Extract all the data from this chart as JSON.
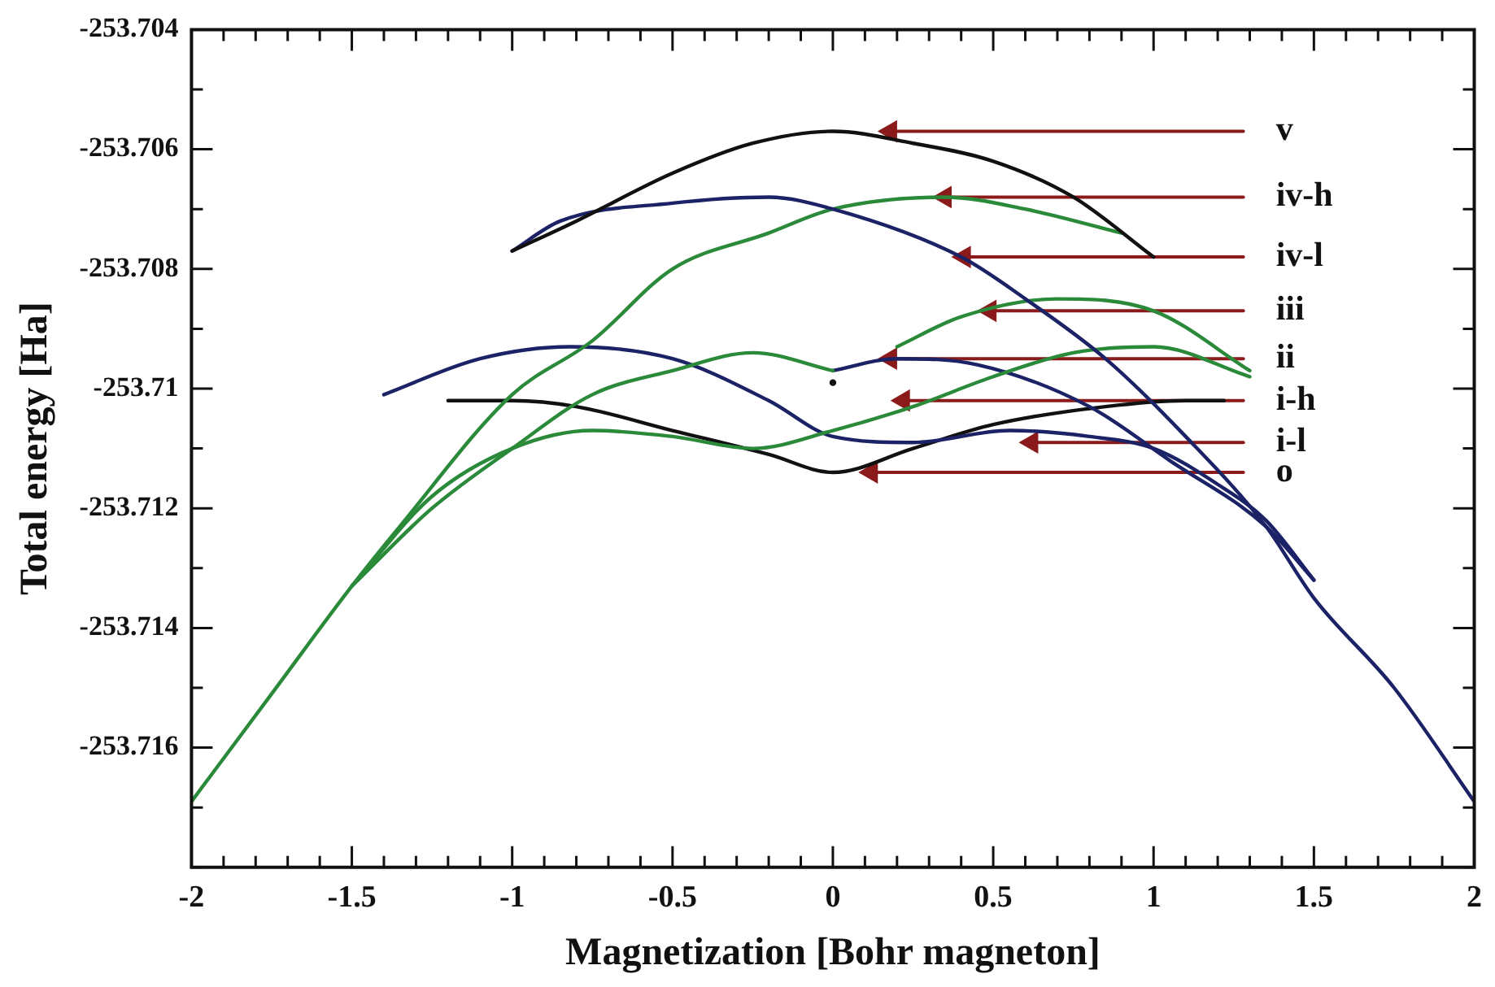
{
  "chart_data": {
    "type": "line",
    "xlabel": "Magnetization [Bohr magneton]",
    "ylabel": "Total energy [Ha]",
    "xlim": [
      -2,
      2
    ],
    "ylim": [
      -253.718,
      -253.704
    ],
    "xticks": [
      -2,
      {
        "value": -1.9,
        "label": null
      },
      {
        "value": -1.8,
        "label": null
      },
      {
        "value": -1.7,
        "label": null
      },
      {
        "value": -1.6,
        "label": null
      },
      -1.5,
      {
        "value": -1.4,
        "label": null
      },
      {
        "value": -1.3,
        "label": null
      },
      {
        "value": -1.2,
        "label": null
      },
      {
        "value": -1.1,
        "label": null
      },
      -1,
      {
        "value": -0.9,
        "label": null
      },
      {
        "value": -0.8,
        "label": null
      },
      {
        "value": -0.7,
        "label": null
      },
      {
        "value": -0.6,
        "label": null
      },
      -0.5,
      {
        "value": -0.4,
        "label": null
      },
      {
        "value": -0.3,
        "label": null
      },
      {
        "value": -0.2,
        "label": null
      },
      {
        "value": -0.1,
        "label": null
      },
      0,
      {
        "value": 0.1,
        "label": null
      },
      {
        "value": 0.2,
        "label": null
      },
      {
        "value": 0.3,
        "label": null
      },
      {
        "value": 0.4,
        "label": null
      },
      0.5,
      {
        "value": 0.6,
        "label": null
      },
      {
        "value": 0.7,
        "label": null
      },
      {
        "value": 0.8,
        "label": null
      },
      {
        "value": 0.9,
        "label": null
      },
      1,
      {
        "value": 1.1,
        "label": null
      },
      {
        "value": 1.2,
        "label": null
      },
      {
        "value": 1.3,
        "label": null
      },
      {
        "value": 1.4,
        "label": null
      },
      1.5,
      {
        "value": 1.6,
        "label": null
      },
      {
        "value": 1.7,
        "label": null
      },
      {
        "value": 1.8,
        "label": null
      },
      {
        "value": 1.9,
        "label": null
      },
      2
    ],
    "yticks": [
      {
        "value": -253.718,
        "label": null
      },
      {
        "value": -253.717,
        "label": null
      },
      -253.716,
      {
        "value": -253.715,
        "label": null
      },
      -253.714,
      {
        "value": -253.713,
        "label": null
      },
      -253.712,
      {
        "value": -253.711,
        "label": null
      },
      -253.71,
      {
        "value": -253.709,
        "label": null
      },
      -253.708,
      {
        "value": -253.707,
        "label": null
      },
      -253.706,
      {
        "value": -253.705,
        "label": null
      },
      -253.704
    ],
    "grid": false,
    "legend": false,
    "marker": "none",
    "line_style": "solid",
    "series": [
      {
        "color": "#111111",
        "x": [
          -1,
          -0.8,
          -0.5,
          -0.25,
          0,
          0.25,
          0.5,
          0.75,
          1
        ],
        "values": [
          -253.7077,
          -253.7072,
          -253.7064,
          -253.7059,
          -253.7057,
          -253.7059,
          -253.7062,
          -253.7068,
          -253.7078
        ]
      },
      {
        "color": "#1c2266",
        "x": [
          -1,
          -0.85,
          -0.5,
          -0.2,
          0,
          0.4,
          0.6,
          0.85,
          1.1,
          1.35,
          1.5,
          1.75,
          2
        ],
        "values": [
          -253.7077,
          -253.7072,
          -253.7069,
          -253.7068,
          -253.707,
          -253.7078,
          -253.7085,
          -253.7095,
          -253.7108,
          -253.7123,
          -253.7135,
          -253.715,
          -253.7169
        ]
      },
      {
        "color": "#2a8a3a",
        "x": [
          -2,
          -1.75,
          -1.5,
          -1.35,
          -1,
          -0.75,
          -0.5,
          -0.2,
          0,
          0.35,
          0.6,
          0.9
        ],
        "values": [
          -253.7169,
          -253.7151,
          -253.7133,
          -253.7123,
          -253.7101,
          -253.7092,
          -253.708,
          -253.7074,
          -253.707,
          -253.7068,
          -253.707,
          -253.7074
        ]
      },
      {
        "color": "#2a8a3a",
        "x": [
          0.2,
          0.4,
          0.7,
          1,
          1.3
        ],
        "values": [
          -253.7093,
          -253.7088,
          -253.7085,
          -253.7087,
          -253.7097
        ]
      },
      {
        "color": "#2a8a3a",
        "x": [
          -1.5,
          -1.25,
          -1,
          -0.75,
          -0.5,
          -0.25,
          0,
          0.25,
          0.5,
          0.75,
          1,
          1.3
        ],
        "values": [
          -253.7133,
          -253.7118,
          -253.711,
          -253.7107,
          -253.7108,
          -253.711,
          -253.7107,
          -253.7103,
          -253.7098,
          -253.7094,
          -253.7093,
          -253.7098
        ]
      },
      {
        "color": "#2a8a3a",
        "x": [
          -1.5,
          -1.25,
          -1,
          -0.75,
          -0.5,
          -0.25,
          0
        ],
        "values": [
          -253.7133,
          -253.712,
          -253.711,
          -253.7101,
          -253.7097,
          -253.7094,
          -253.7097
        ]
      },
      {
        "color": "#1c2266",
        "x": [
          0,
          0.2,
          0.45,
          0.8,
          1.05,
          1.35,
          1.5
        ],
        "values": [
          -253.7097,
          -253.7095,
          -253.7096,
          -253.7103,
          -253.7112,
          -253.7123,
          -253.7132
        ]
      },
      {
        "color": "#1c2266",
        "x": [
          -1.4,
          -1.1,
          -0.82,
          -0.5,
          -0.2,
          0,
          0.25,
          0.55,
          0.8,
          1,
          1.2,
          1.35,
          1.5
        ],
        "values": [
          -253.7101,
          -253.7095,
          -253.7093,
          -253.7095,
          -253.7102,
          -253.7108,
          -253.7109,
          -253.7107,
          -253.7108,
          -253.711,
          -253.7116,
          -253.7122,
          -253.7132
        ]
      },
      {
        "color": "#111111",
        "x": [
          -1.2,
          -1,
          -0.8,
          -0.5,
          -0.2,
          0,
          0.25,
          0.5,
          0.85,
          1.1,
          1.22
        ],
        "values": [
          -253.7102,
          -253.7102,
          -253.7103,
          -253.7107,
          -253.7111,
          -253.7114,
          -253.711,
          -253.7106,
          -253.7103,
          -253.7102,
          -253.7102
        ]
      },
      {
        "type": "scatter",
        "color": "#111111",
        "marker": "circle",
        "x": [
          0
        ],
        "values": [
          -253.7099
        ]
      },
      {
        "name": "v",
        "color": "#8b1a1a",
        "marker": "triangle",
        "x": [
          1.28,
          0.18
        ],
        "values": [
          -253.7057,
          -253.7057
        ]
      },
      {
        "name": "iv-h",
        "color": "#8b1a1a",
        "marker": "triangle",
        "x": [
          1.28,
          0.35
        ],
        "values": [
          -253.7068,
          -253.7068
        ]
      },
      {
        "name": "iv-l",
        "color": "#8b1a1a",
        "marker": "triangle",
        "x": [
          1.28,
          0.41
        ],
        "values": [
          -253.7078,
          -253.7078
        ]
      },
      {
        "name": "iii",
        "color": "#8b1a1a",
        "marker": "triangle",
        "x": [
          1.28,
          0.49
        ],
        "values": [
          -253.7087,
          -253.7087
        ]
      },
      {
        "name": "ii",
        "color": "#8b1a1a",
        "marker": "triangle",
        "x": [
          1.28,
          0.18
        ],
        "values": [
          -253.7095,
          -253.7095
        ]
      },
      {
        "name": "i-h",
        "color": "#8b1a1a",
        "marker": "triangle",
        "x": [
          1.28,
          0.22
        ],
        "values": [
          -253.7102,
          -253.7102
        ]
      },
      {
        "name": "i-l",
        "color": "#8b1a1a",
        "marker": "triangle",
        "x": [
          1.28,
          0.62
        ],
        "values": [
          -253.7109,
          -253.7109
        ]
      },
      {
        "name": "o",
        "color": "#8b1a1a",
        "marker": "triangle",
        "x": [
          1.28,
          0.12
        ],
        "values": [
          -253.7114,
          -253.7114
        ]
      }
    ]
  }
}
